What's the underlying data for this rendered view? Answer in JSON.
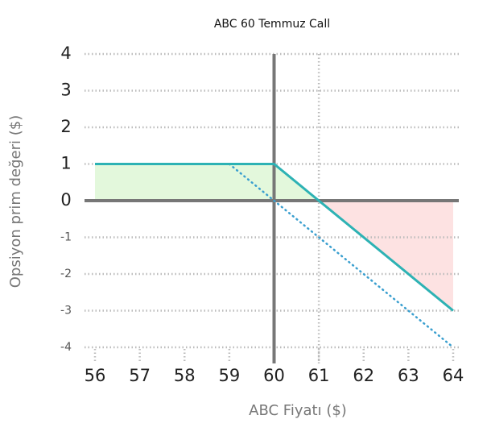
{
  "chart_data": {
    "type": "line",
    "title": "ABC 60 Temmuz Call",
    "xlabel": "ABC Fiyatı ($)",
    "ylabel": "Opsiyon prim değeri ($)",
    "xlim": [
      56,
      64
    ],
    "xticks": [
      56,
      57,
      58,
      59,
      60,
      61,
      62,
      63,
      64
    ],
    "ylim": [
      -4,
      4
    ],
    "yticks": [
      4,
      3,
      2,
      1,
      0,
      -1,
      -2,
      -3,
      -4
    ],
    "grid": true,
    "yaxis_at_x": 60,
    "reference_x": 61,
    "positive_fill": "#e3f8dc",
    "negative_fill": "#fde2e2",
    "series": [
      {
        "name": "solid",
        "style": "solid",
        "color": "#2db2b4",
        "x": [
          56,
          60,
          61,
          64
        ],
        "values": [
          1,
          1,
          0,
          -3
        ]
      },
      {
        "name": "dotted",
        "style": "dotted",
        "color": "#3a9fcf",
        "x": [
          59,
          64
        ],
        "values": [
          1,
          -4
        ]
      }
    ]
  }
}
